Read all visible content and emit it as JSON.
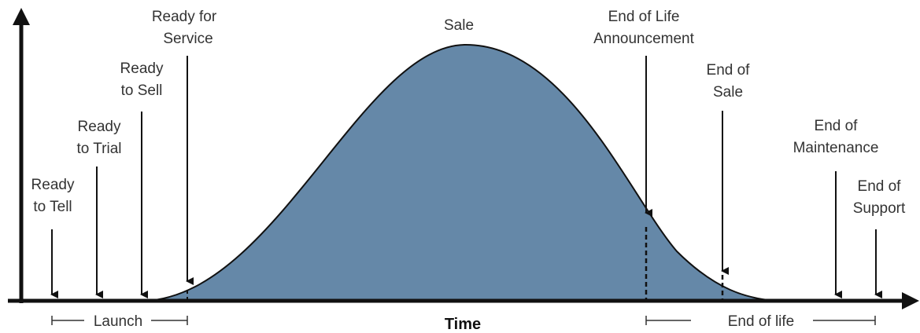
{
  "diagram": {
    "curve_label": "Sale",
    "x_axis_label": "Time",
    "launch_label": "Launch",
    "end_of_life_label": "End of life",
    "colors": {
      "curve_fill": "#6588a8",
      "curve_stroke": "#111111",
      "axis": "#111111",
      "text": "#333333"
    },
    "milestones": [
      {
        "id": "ready-to-tell",
        "lines": [
          "Ready",
          "to Tell"
        ]
      },
      {
        "id": "ready-to-trial",
        "lines": [
          "Ready",
          "to Trial"
        ]
      },
      {
        "id": "ready-to-sell",
        "lines": [
          "Ready",
          "to Sell"
        ]
      },
      {
        "id": "ready-for-service",
        "lines": [
          "Ready for",
          "Service"
        ]
      },
      {
        "id": "end-of-life-announcement",
        "lines": [
          "End of Life",
          "Announcement"
        ]
      },
      {
        "id": "end-of-sale",
        "lines": [
          "End of",
          "Sale"
        ]
      },
      {
        "id": "end-of-maintenance",
        "lines": [
          "End of",
          "Maintenance"
        ]
      },
      {
        "id": "end-of-support",
        "lines": [
          "End of",
          "Support"
        ]
      }
    ]
  }
}
